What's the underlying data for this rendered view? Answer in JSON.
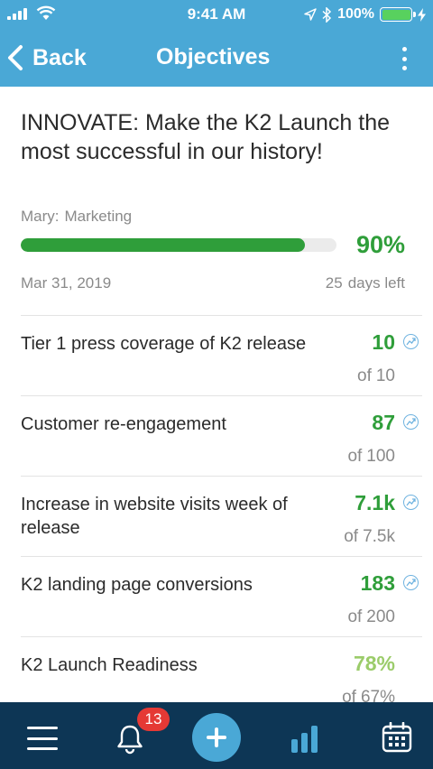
{
  "status_bar": {
    "time": "9:41 AM",
    "battery": "100%",
    "icons": [
      "signal-icon",
      "wifi-icon",
      "location-arrow-icon",
      "bluetooth-icon",
      "battery-icon",
      "charging-bolt-icon"
    ]
  },
  "nav": {
    "back_label": "Back",
    "title": "Objectives",
    "icons": [
      "chevron-left-icon",
      "more-vertical-icon"
    ]
  },
  "objective": {
    "title": "INNOVATE: Make the K2 Launch the most successful in our history!",
    "owner": "Mary:",
    "team": "Marketing",
    "progress_pct_label": "90%",
    "progress_value": 0.9,
    "due_date": "Mar 31, 2019",
    "days_left_count": "25",
    "days_left_label": "days left"
  },
  "key_results": [
    {
      "name": "Tier 1 press coverage of K2 release",
      "value": "10",
      "of": "of",
      "target": "10",
      "value_color": "#2f9e3a"
    },
    {
      "name": "Customer re-engagement",
      "value": "87",
      "of": "of",
      "target": "100",
      "value_color": "#2f9e3a"
    },
    {
      "name": "Increase in website visits week of release",
      "value": "7.1k",
      "of": "of",
      "target": "7.5k",
      "value_color": "#2f9e3a"
    },
    {
      "name": "K2 landing page conversions",
      "value": "183",
      "of": "of",
      "target": "200",
      "value_color": "#2f9e3a"
    },
    {
      "name": "K2 Launch Readiness",
      "value": "78%",
      "of": "of",
      "target": "67%",
      "value_color": "#9bcc6a"
    }
  ],
  "tab_bar": {
    "notification_count": "13",
    "items": [
      "menu-icon",
      "bell-icon",
      "add-icon",
      "chart-icon",
      "calendar-icon"
    ]
  },
  "colors": {
    "header": "#4aa8d6",
    "tab_bar": "#0d3655",
    "progress": "#2f9e3a",
    "badge": "#e53935"
  }
}
